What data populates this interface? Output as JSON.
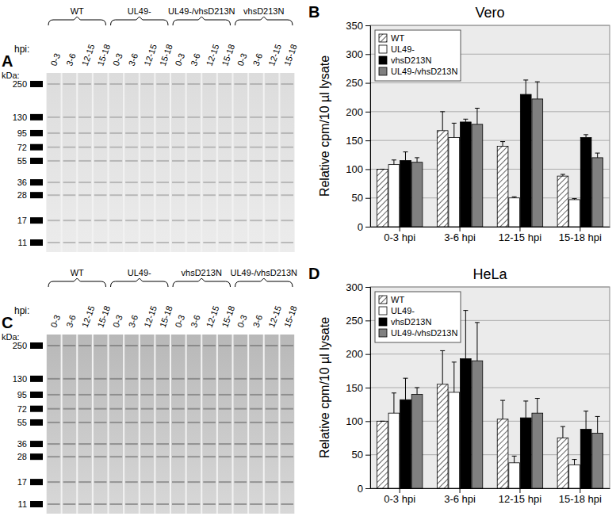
{
  "chart_data": [
    {
      "type": "bar",
      "panel": "B",
      "title": "Vero",
      "y_label": "Relative cpm/10 µl lysate",
      "categories": [
        "0-3 hpi",
        "3-6 hpi",
        "12-15 hpi",
        "15-18 hpi"
      ],
      "ylim": [
        0,
        350
      ],
      "yticks": [
        0,
        50,
        100,
        150,
        200,
        250,
        300,
        350
      ],
      "grid": true,
      "legend": "upper left",
      "series": [
        {
          "name": "WT",
          "color": "#ffffff",
          "marker": "hatch",
          "values": [
            100,
            167,
            140,
            88
          ],
          "errors": [
            0,
            33,
            8,
            3
          ]
        },
        {
          "name": "UL49-",
          "color": "#ffffff",
          "values": [
            108,
            155,
            50,
            47
          ],
          "errors": [
            8,
            25,
            2,
            2
          ]
        },
        {
          "name": "vhsD213N",
          "color": "#000000",
          "values": [
            115,
            182,
            230,
            155
          ],
          "errors": [
            15,
            5,
            25,
            5
          ]
        },
        {
          "name": "UL49-/vhsD213N",
          "color": "#808080",
          "values": [
            112,
            178,
            222,
            120
          ],
          "errors": [
            8,
            28,
            30,
            8
          ]
        }
      ]
    },
    {
      "type": "bar",
      "panel": "D",
      "title": "HeLa",
      "y_label": "Relative cpm/10 µl lysate",
      "categories": [
        "0-3 hpi",
        "3-6 hpi",
        "12-15 hpi",
        "15-18 hpi"
      ],
      "ylim": [
        0,
        300
      ],
      "yticks": [
        0,
        50,
        100,
        150,
        200,
        250,
        300
      ],
      "grid": true,
      "legend": "upper left",
      "series": [
        {
          "name": "WT",
          "color": "#ffffff",
          "marker": "hatch",
          "values": [
            100,
            155,
            103,
            75
          ],
          "errors": [
            0,
            50,
            28,
            17
          ]
        },
        {
          "name": "UL49-",
          "color": "#ffffff",
          "values": [
            112,
            143,
            38,
            35
          ],
          "errors": [
            30,
            45,
            10,
            8
          ]
        },
        {
          "name": "vhsD213N",
          "color": "#000000",
          "values": [
            132,
            193,
            105,
            88
          ],
          "errors": [
            32,
            72,
            25,
            27
          ]
        },
        {
          "name": "UL49-/vhsD213N",
          "color": "#808080",
          "values": [
            140,
            190,
            112,
            82
          ],
          "errors": [
            10,
            57,
            22,
            25
          ]
        }
      ]
    }
  ],
  "gels": [
    {
      "panel": "A",
      "hpi_label": "hpi:",
      "kda_label": "kDa:",
      "lanes": [
        "0-3",
        "3-6",
        "12-15",
        "15-18"
      ],
      "groups": [
        "WT",
        "UL49-",
        "UL49-/vhsD213N",
        "vhsD213N"
      ],
      "markers": [
        250,
        130,
        95,
        72,
        55,
        36,
        28,
        17,
        11
      ]
    },
    {
      "panel": "C",
      "hpi_label": "hpi:",
      "kda_label": "kDa:",
      "lanes": [
        "0-3",
        "3-6",
        "12-15",
        "15-18"
      ],
      "groups": [
        "WT",
        "UL49-",
        "vhsD213N",
        "UL49-/vhsD213N"
      ],
      "markers": [
        250,
        130,
        95,
        72,
        55,
        36,
        28,
        17,
        11
      ]
    }
  ]
}
